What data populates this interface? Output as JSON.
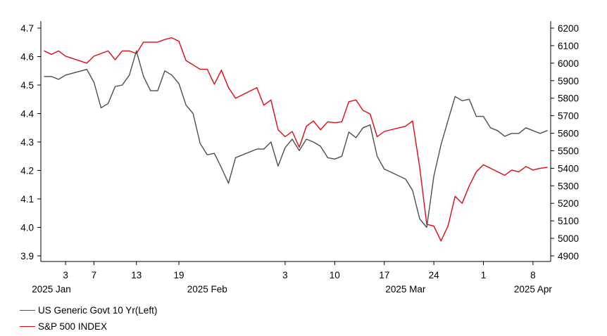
{
  "chart_data": {
    "type": "line",
    "colors": {
      "yield": "#4d4d4d",
      "spx": "#e30613"
    },
    "x_ticks": [
      {
        "day": 2,
        "label": "3"
      },
      {
        "day": 6,
        "label": "7"
      },
      {
        "day": 12,
        "label": "13"
      },
      {
        "day": 18,
        "label": "19"
      },
      {
        "day": 33,
        "label": "3"
      },
      {
        "day": 40,
        "label": "10"
      },
      {
        "day": 47,
        "label": "17"
      },
      {
        "day": 54,
        "label": "24"
      },
      {
        "day": 61,
        "label": "1"
      },
      {
        "day": 68,
        "label": "8"
      }
    ],
    "period_labels": [
      {
        "day": 0,
        "label": "2025 Jan"
      },
      {
        "day": 22,
        "label": "2025 Feb"
      },
      {
        "day": 50,
        "label": "2025 Mar"
      },
      {
        "day": 68,
        "label": "2025 Apr"
      }
    ],
    "left_axis": {
      "ylim": [
        3.9,
        4.7
      ],
      "ticks": [
        "3.9",
        "4.0",
        "4.1",
        "4.2",
        "4.3",
        "4.4",
        "4.5",
        "4.6",
        "4.7"
      ]
    },
    "right_axis": {
      "ylim": [
        4900,
        6200
      ],
      "ticks": [
        "4900",
        "5000",
        "5100",
        "5200",
        "5300",
        "5400",
        "5500",
        "5600",
        "5700",
        "5800",
        "5900",
        "6000",
        "6100",
        "6200"
      ]
    },
    "series": [
      {
        "name": "US Generic Govt 10 Yr(Left)",
        "axis": "left",
        "x": [
          -1,
          0,
          1,
          2,
          5,
          6,
          7,
          8,
          9,
          10,
          11,
          12,
          13,
          14,
          15,
          16,
          17,
          18,
          19,
          20,
          21,
          22,
          23,
          24,
          25,
          26,
          29,
          30,
          31,
          32,
          33,
          34,
          35,
          36,
          37,
          38,
          39,
          40,
          41,
          42,
          43,
          44,
          45,
          46,
          47,
          50,
          51,
          52,
          53,
          54,
          55,
          56,
          57,
          58,
          59,
          60,
          61,
          62,
          63,
          64,
          65,
          66,
          67,
          68,
          69,
          70
        ],
        "values": [
          4.53,
          4.53,
          4.52,
          4.535,
          4.555,
          4.51,
          4.42,
          4.435,
          4.495,
          4.5,
          4.535,
          4.62,
          4.53,
          4.48,
          4.48,
          4.55,
          4.535,
          4.505,
          4.43,
          4.4,
          4.295,
          4.255,
          4.26,
          4.21,
          4.155,
          4.245,
          4.275,
          4.275,
          4.3,
          4.215,
          4.28,
          4.31,
          4.27,
          4.31,
          4.3,
          4.285,
          4.245,
          4.24,
          4.25,
          4.335,
          4.315,
          4.35,
          4.36,
          4.25,
          4.205,
          4.17,
          4.13,
          4.03,
          4.0,
          4.18,
          4.29,
          4.375,
          4.46,
          4.445,
          4.45,
          4.39,
          4.39,
          4.35,
          4.34,
          4.32,
          4.33,
          4.33,
          4.35,
          4.34,
          4.33,
          4.34
        ]
      },
      {
        "name": "S&P 500 INDEX",
        "axis": "right",
        "x": [
          -1,
          0,
          1,
          2,
          5,
          6,
          7,
          8,
          9,
          10,
          11,
          12,
          13,
          14,
          15,
          16,
          17,
          18,
          19,
          20,
          21,
          22,
          23,
          24,
          25,
          26,
          29,
          30,
          31,
          32,
          33,
          34,
          35,
          36,
          37,
          38,
          39,
          40,
          41,
          42,
          43,
          44,
          45,
          46,
          47,
          50,
          51,
          52,
          53,
          54,
          55,
          56,
          57,
          58,
          59,
          60,
          61,
          62,
          63,
          64,
          65,
          66,
          67,
          68,
          69,
          70
        ],
        "values": [
          6070,
          6050,
          6070,
          6040,
          6000,
          6040,
          6055,
          6070,
          6020,
          6070,
          6070,
          6055,
          6120,
          6120,
          6120,
          6135,
          6145,
          6125,
          6015,
          5990,
          5965,
          5965,
          5880,
          5960,
          5860,
          5800,
          5860,
          5760,
          5790,
          5620,
          5580,
          5610,
          5520,
          5640,
          5670,
          5620,
          5665,
          5660,
          5665,
          5780,
          5790,
          5730,
          5710,
          5580,
          5610,
          5640,
          5670,
          5405,
          5080,
          5070,
          4985,
          5070,
          5240,
          5200,
          5300,
          5380,
          5420,
          5400,
          5380,
          5360,
          5390,
          5380,
          5410,
          5390,
          5400,
          5405
        ]
      }
    ]
  }
}
